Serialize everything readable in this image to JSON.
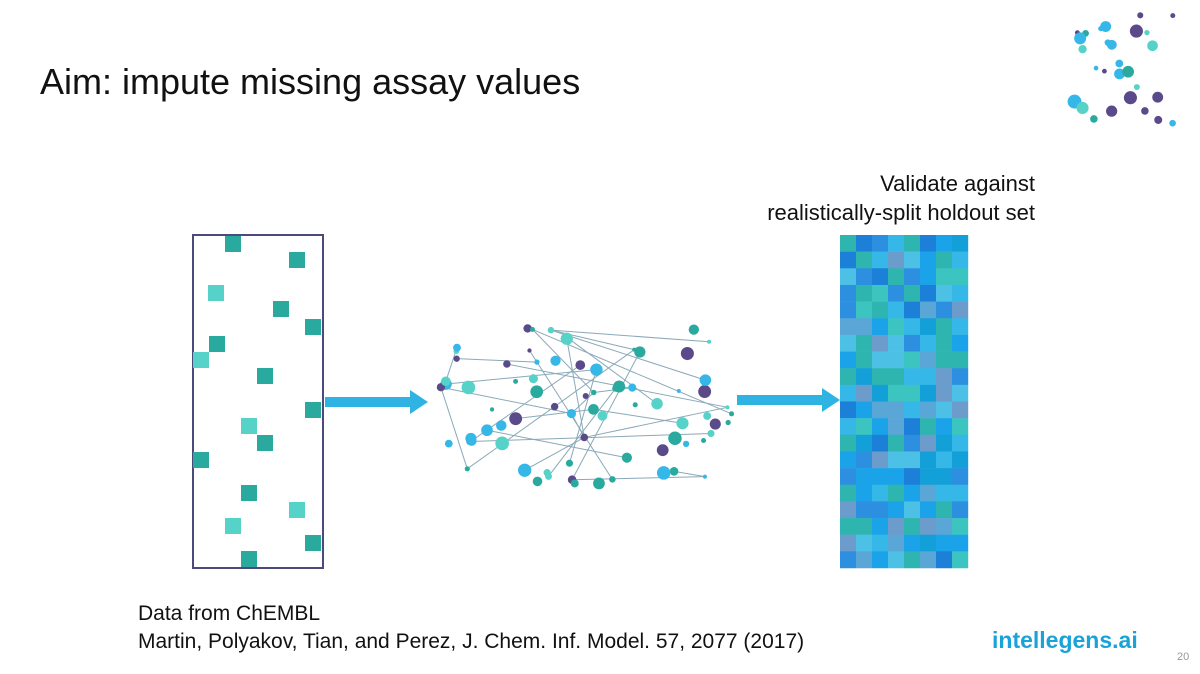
{
  "title": "Aim: impute missing assay values",
  "validation_note": {
    "lines": [
      "Validate against",
      "realistically-split holdout set"
    ]
  },
  "source": {
    "lines": [
      "Data from ChEMBL",
      "Martin, Polyakov, Tian, and Perez, J. Chem. Inf. Model. 57, 2077 (2017)"
    ]
  },
  "logo": "intellegens.ai",
  "page_number": "20"
}
